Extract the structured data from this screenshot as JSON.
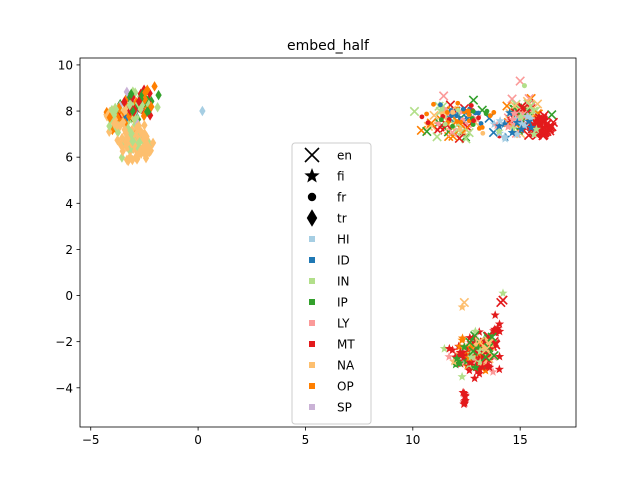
{
  "chart_data": {
    "type": "scatter",
    "title": "embed_half",
    "xlabel": "",
    "ylabel": "",
    "xlim": [
      -5.5,
      17.6
    ],
    "ylim": [
      -5.7,
      10.3
    ],
    "x_ticks": [
      -5,
      0,
      5,
      10,
      15
    ],
    "y_ticks": [
      -4,
      -2,
      0,
      2,
      4,
      6,
      8,
      10
    ],
    "x_tick_labels": [
      "−5",
      "0",
      "5",
      "10",
      "15"
    ],
    "y_tick_labels": [
      "−4",
      "−2",
      "0",
      "2",
      "4",
      "6",
      "8",
      "10"
    ],
    "grid": false,
    "legend_position": "center",
    "marker_legend": [
      {
        "label": "en",
        "marker": "x"
      },
      {
        "label": "fi",
        "marker": "star"
      },
      {
        "label": "fr",
        "marker": "circle"
      },
      {
        "label": "tr",
        "marker": "diamond"
      }
    ],
    "category_legend": [
      {
        "label": "HI",
        "color": "#a6cee3"
      },
      {
        "label": "ID",
        "color": "#1f78b4"
      },
      {
        "label": "IN",
        "color": "#b2df8a"
      },
      {
        "label": "IP",
        "color": "#33a02c"
      },
      {
        "label": "LY",
        "color": "#fb9a99"
      },
      {
        "label": "MT",
        "color": "#e31a1c"
      },
      {
        "label": "NA",
        "color": "#fdbf6f"
      },
      {
        "label": "OP",
        "color": "#ff7f00"
      },
      {
        "label": "SP",
        "color": "#cab2d6"
      }
    ],
    "clusters": [
      {
        "marker": "diamond",
        "cx": -3.2,
        "cy": 7.9,
        "sx": 0.5,
        "sy": 0.55,
        "n": 80,
        "categories": [
          "IN",
          "IP",
          "MT",
          "OP",
          "NA",
          "ID",
          "SP"
        ]
      },
      {
        "marker": "diamond",
        "cx": -2.5,
        "cy": 8.4,
        "sx": 0.5,
        "sy": 0.4,
        "n": 40,
        "categories": [
          "MT",
          "IP",
          "OP",
          "IN"
        ]
      },
      {
        "marker": "diamond",
        "cx": -3.9,
        "cy": 7.6,
        "sx": 0.3,
        "sy": 0.4,
        "n": 30,
        "categories": [
          "OP",
          "NA",
          "IN"
        ]
      },
      {
        "marker": "diamond",
        "cx": -2.9,
        "cy": 6.6,
        "sx": 0.5,
        "sy": 0.45,
        "n": 120,
        "categories": [
          "NA",
          "NA",
          "NA",
          "IN"
        ]
      },
      {
        "marker": "diamond",
        "cx": -3.3,
        "cy": 5.9,
        "sx": 0.15,
        "sy": 0.2,
        "n": 5,
        "categories": [
          "NA"
        ]
      },
      {
        "marker": "x",
        "cx": 11.9,
        "cy": 7.6,
        "sx": 1.0,
        "sy": 0.55,
        "n": 60,
        "categories": [
          "IN",
          "IP",
          "NA",
          "LY",
          "ID",
          "MT",
          "OP"
        ]
      },
      {
        "marker": "circle",
        "cx": 12.3,
        "cy": 7.8,
        "sx": 1.1,
        "sy": 0.5,
        "n": 60,
        "categories": [
          "IP",
          "NA",
          "ID",
          "MT",
          "IN",
          "LY",
          "OP"
        ]
      },
      {
        "marker": "x",
        "cx": 15.2,
        "cy": 7.9,
        "sx": 0.7,
        "sy": 0.55,
        "n": 60,
        "categories": [
          "IN",
          "LY",
          "NA",
          "OP",
          "IP",
          "MT"
        ]
      },
      {
        "marker": "x",
        "cx": 16.0,
        "cy": 7.3,
        "sx": 0.35,
        "sy": 0.35,
        "n": 50,
        "categories": [
          "MT"
        ]
      },
      {
        "marker": "star",
        "cx": 14.7,
        "cy": 7.6,
        "sx": 0.6,
        "sy": 0.5,
        "n": 30,
        "categories": [
          "HI",
          "ID",
          "IN",
          "LY"
        ]
      },
      {
        "marker": "star",
        "cx": 12.8,
        "cy": -2.6,
        "sx": 0.7,
        "sy": 0.55,
        "n": 140,
        "categories": [
          "MT",
          "MT",
          "MT",
          "IP",
          "NA",
          "IN",
          "OP",
          "LY"
        ]
      },
      {
        "marker": "star",
        "cx": 13.9,
        "cy": -1.4,
        "sx": 0.15,
        "sy": 0.35,
        "n": 10,
        "categories": [
          "MT"
        ]
      },
      {
        "marker": "star",
        "cx": 12.4,
        "cy": -4.5,
        "sx": 0.05,
        "sy": 0.3,
        "n": 8,
        "categories": [
          "MT"
        ]
      },
      {
        "marker": "x",
        "cx": 13.5,
        "cy": -2.2,
        "sx": 0.45,
        "sy": 0.35,
        "n": 25,
        "categories": [
          "MT",
          "IP",
          "NA"
        ]
      }
    ],
    "points": [
      {
        "x": 0.2,
        "y": 8.0,
        "marker": "diamond",
        "category": "HI"
      },
      {
        "x": 12.4,
        "y": -0.3,
        "marker": "x",
        "category": "NA"
      },
      {
        "x": 12.3,
        "y": -0.5,
        "marker": "star",
        "category": "NA"
      },
      {
        "x": 14.2,
        "y": 0.1,
        "marker": "star",
        "category": "IN"
      },
      {
        "x": 14.2,
        "y": -0.2,
        "marker": "x",
        "category": "MT"
      },
      {
        "x": 14.1,
        "y": -0.3,
        "marker": "x",
        "category": "MT"
      },
      {
        "x": 15.0,
        "y": 9.3,
        "marker": "x",
        "category": "LY"
      },
      {
        "x": 15.2,
        "y": 9.1,
        "marker": "circle",
        "category": "IN"
      },
      {
        "x": 14.3,
        "y": 6.8,
        "marker": "star",
        "category": "HI"
      }
    ]
  }
}
